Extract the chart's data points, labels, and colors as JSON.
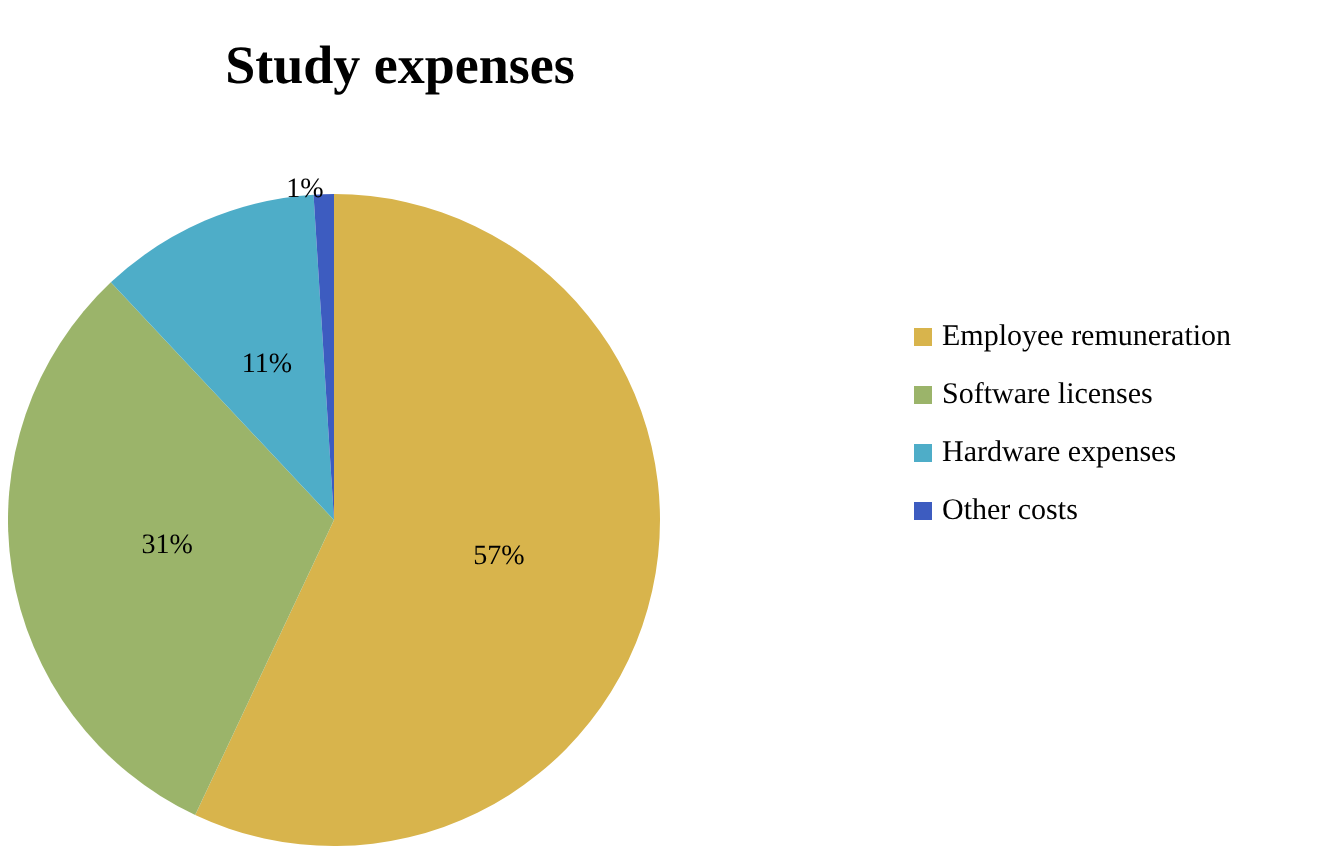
{
  "chart_data": {
    "type": "pie",
    "title": "Study expenses",
    "categories": [
      "Employee remuneration",
      "Software licenses",
      "Hardware expenses",
      "Other costs"
    ],
    "values": [
      57,
      31,
      11,
      1
    ],
    "value_labels": [
      "57%",
      "31%",
      "11%",
      "1%"
    ],
    "colors": [
      "#d8b44c",
      "#9bb46a",
      "#4eadc8",
      "#3d5cc0"
    ],
    "legend": "right"
  }
}
